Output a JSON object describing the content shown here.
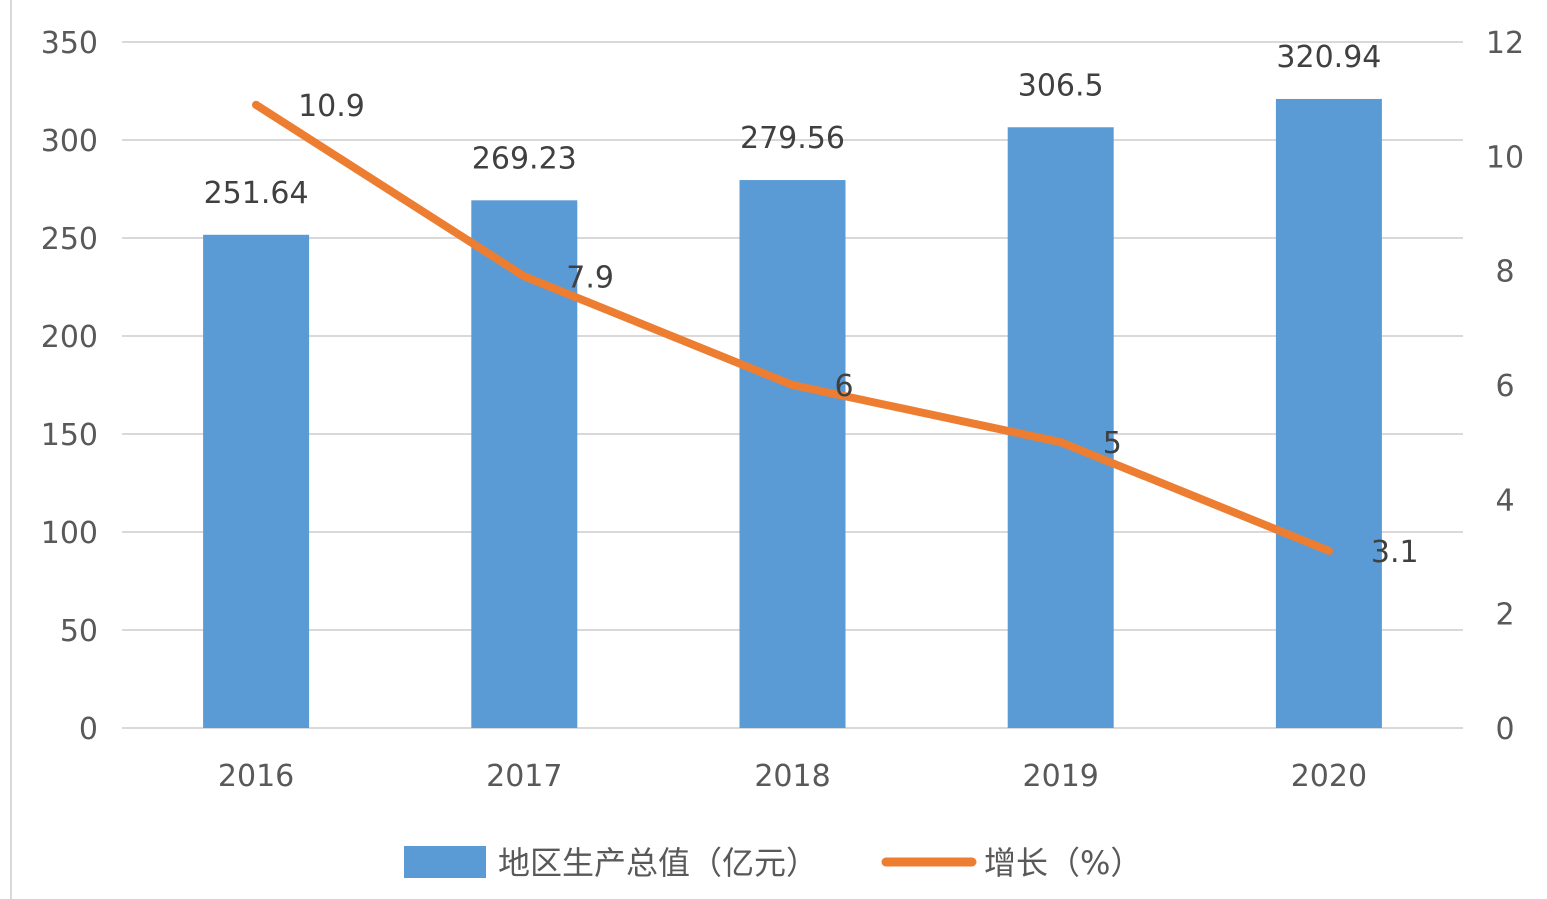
{
  "chart_data": {
    "type": "bar",
    "categories": [
      "2016",
      "2017",
      "2018",
      "2019",
      "2020"
    ],
    "series": [
      {
        "name": "地区生产总值（亿元）",
        "type": "bar",
        "axis": "left",
        "values": [
          251.64,
          269.23,
          279.56,
          306.5,
          320.94
        ],
        "color": "#5B9BD5"
      },
      {
        "name": "增长（%）",
        "type": "line",
        "axis": "right",
        "values": [
          10.9,
          7.9,
          6,
          5,
          3.1
        ],
        "color": "#ED7D31"
      }
    ],
    "y_left": {
      "min": 0,
      "max": 350,
      "ticks": [
        0,
        50,
        100,
        150,
        200,
        250,
        300,
        350
      ]
    },
    "y_right": {
      "min": 0,
      "max": 12,
      "ticks": [
        0,
        2,
        4,
        6,
        8,
        10,
        12
      ]
    },
    "bar_labels": [
      "251.64",
      "269.23",
      "279.56",
      "306.5",
      "320.94"
    ],
    "line_labels": [
      "10.9",
      "7.9",
      "6",
      "5",
      "3.1"
    ],
    "grid": true,
    "legend_position": "bottom",
    "gridline_color": "#D9D9D9"
  }
}
